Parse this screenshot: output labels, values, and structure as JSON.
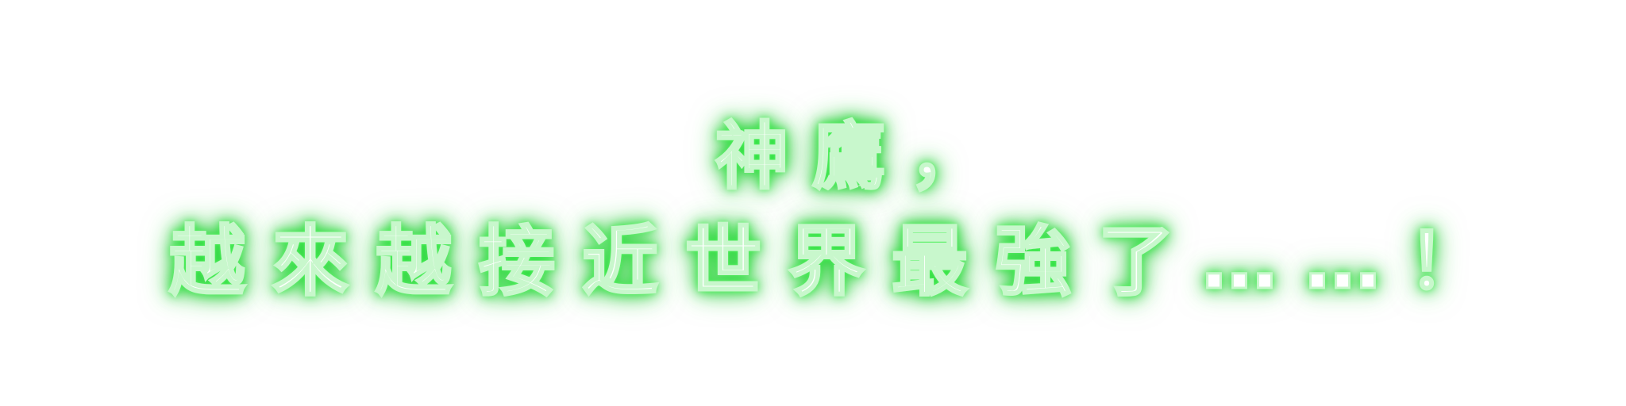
{
  "dialogue": {
    "line_1": "神鷹，",
    "line_2": "越來越接近世界最強了……！"
  },
  "colors": {
    "text": "#ffffff",
    "glow": "#22c832",
    "background": "#ffffff"
  }
}
